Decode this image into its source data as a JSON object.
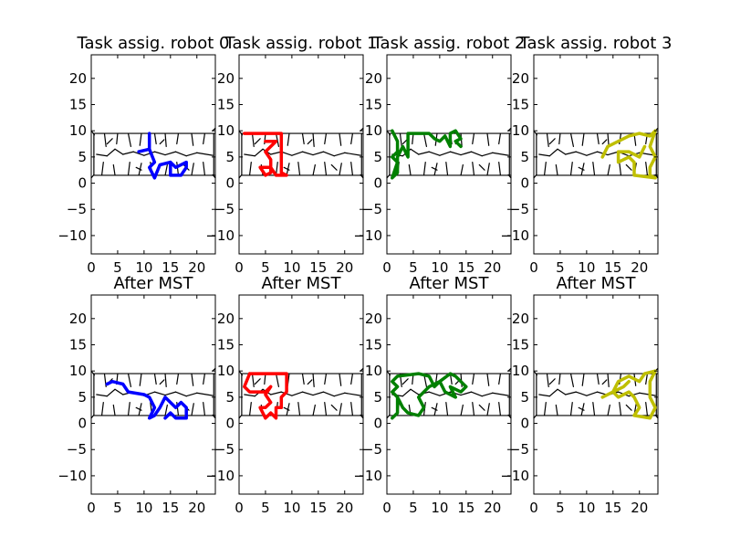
{
  "chart_data": [
    {
      "type": "line",
      "title": "Task assig. robot 0",
      "color": "#0000ff",
      "xlim": [
        0,
        23.5
      ],
      "ylim": [
        -13.5,
        24.5
      ],
      "xticks": [
        "0",
        "5",
        "10",
        "15",
        "20"
      ],
      "yticks": [
        "−10",
        "−5",
        "0",
        "5",
        "10",
        "15",
        "20"
      ],
      "series": [
        {
          "values": [
            [
              9,
              6
            ],
            [
              11,
              6.5
            ],
            [
              11,
              9.5
            ],
            [
              11,
              6.5
            ],
            [
              12,
              4
            ],
            [
              11,
              3
            ],
            [
              12,
              1
            ],
            [
              13,
              3.5
            ],
            [
              15,
              4
            ],
            [
              15,
              1.5
            ],
            [
              17,
              1.5
            ],
            [
              18,
              3
            ],
            [
              18,
              4
            ],
            [
              16,
              3
            ],
            [
              15,
              4
            ]
          ]
        }
      ]
    },
    {
      "type": "line",
      "title": "Task assig. robot 1",
      "color": "#ff0000",
      "xlim": [
        0,
        23.5
      ],
      "ylim": [
        -13.5,
        24.5
      ],
      "xticks": [
        "0",
        "5",
        "10",
        "15",
        "20"
      ],
      "yticks": [
        "−10",
        "−5",
        "0",
        "5",
        "10",
        "15",
        "20"
      ],
      "series": [
        {
          "values": [
            [
              1,
              9.5
            ],
            [
              8,
              9.5
            ],
            [
              8,
              2
            ],
            [
              9,
              1.5
            ],
            [
              7,
              1.5
            ],
            [
              6,
              3
            ],
            [
              4,
              3
            ],
            [
              5,
              1.5
            ],
            [
              6,
              2
            ],
            [
              6,
              4.5
            ],
            [
              5,
              6
            ],
            [
              6,
              7
            ],
            [
              7,
              8
            ],
            [
              5,
              8
            ]
          ]
        }
      ]
    },
    {
      "type": "line",
      "title": "Task assig. robot 2",
      "color": "#008000",
      "xlim": [
        0,
        23.5
      ],
      "ylim": [
        -13.5,
        24.5
      ],
      "xticks": [
        "0",
        "5",
        "10",
        "15",
        "20"
      ],
      "yticks": [
        "−10",
        "−5",
        "0",
        "5",
        "10",
        "15",
        "20"
      ],
      "series": [
        {
          "values": [
            [
              1,
              10
            ],
            [
              2,
              8
            ],
            [
              2,
              6
            ],
            [
              1,
              5
            ],
            [
              2,
              4
            ],
            [
              1,
              1
            ],
            [
              2,
              2
            ],
            [
              2,
              5
            ],
            [
              3,
              7
            ],
            [
              4,
              5
            ],
            [
              4,
              9.5
            ],
            [
              8,
              9.5
            ],
            [
              9,
              8.5
            ],
            [
              10,
              8
            ],
            [
              11,
              9
            ],
            [
              12,
              7
            ],
            [
              12,
              9.5
            ],
            [
              13,
              10
            ],
            [
              14,
              8.5
            ],
            [
              13,
              8
            ],
            [
              14,
              7
            ]
          ]
        }
      ]
    },
    {
      "type": "line",
      "title": "Task assig. robot 3",
      "color": "#bfbf00",
      "xlim": [
        0,
        23.5
      ],
      "ylim": [
        -13.5,
        24.5
      ],
      "xticks": [
        "0",
        "5",
        "10",
        "15",
        "20"
      ],
      "yticks": [
        "−10",
        "−5",
        "0",
        "5",
        "10",
        "15",
        "20"
      ],
      "series": [
        {
          "values": [
            [
              13,
              5
            ],
            [
              14,
              7
            ],
            [
              16,
              8
            ],
            [
              18,
              9
            ],
            [
              20,
              9.5
            ],
            [
              22,
              9
            ],
            [
              23,
              10
            ],
            [
              22,
              7
            ],
            [
              23,
              5
            ],
            [
              22,
              3
            ],
            [
              22,
              1.5
            ],
            [
              23,
              1
            ],
            [
              19,
              1.5
            ],
            [
              19,
              4
            ],
            [
              18,
              5
            ],
            [
              16,
              4
            ],
            [
              16,
              6
            ],
            [
              18,
              6
            ],
            [
              20,
              5
            ],
            [
              21,
              7
            ]
          ]
        }
      ]
    },
    {
      "type": "line",
      "title": "After MST",
      "color": "#0000ff",
      "xlim": [
        0,
        23.5
      ],
      "ylim": [
        -13.5,
        24.5
      ],
      "xticks": [
        "0",
        "5",
        "10",
        "15",
        "20"
      ],
      "yticks": [
        "−10",
        "−5",
        "0",
        "5",
        "10",
        "15",
        "20"
      ],
      "series": [
        {
          "values": [
            [
              3,
              7.5
            ],
            [
              4,
              8
            ],
            [
              6,
              7.5
            ],
            [
              7,
              6
            ],
            [
              10,
              5.5
            ],
            [
              11,
              5
            ],
            [
              12,
              3
            ],
            [
              11,
              1
            ],
            [
              12,
              1.5
            ],
            [
              13,
              3
            ],
            [
              14,
              5
            ],
            [
              15,
              4
            ],
            [
              16,
              3
            ],
            [
              17,
              4
            ],
            [
              18,
              3
            ],
            [
              18,
              1
            ],
            [
              16,
              1
            ],
            [
              15,
              2
            ],
            [
              14,
              1
            ]
          ]
        }
      ]
    },
    {
      "type": "line",
      "title": "After MST",
      "color": "#ff0000",
      "xlim": [
        0,
        23.5
      ],
      "ylim": [
        -13.5,
        24.5
      ],
      "xticks": [
        "0",
        "5",
        "10",
        "15",
        "20"
      ],
      "yticks": [
        "−10",
        "−5",
        "0",
        "5",
        "10",
        "15",
        "20"
      ],
      "series": [
        {
          "values": [
            [
              2,
              9.5
            ],
            [
              1,
              7
            ],
            [
              2,
              6
            ],
            [
              5,
              6
            ],
            [
              6,
              7
            ],
            [
              5,
              5.5
            ],
            [
              6,
              4
            ],
            [
              5,
              3
            ],
            [
              4,
              3
            ],
            [
              5,
              1
            ],
            [
              6,
              2
            ],
            [
              7,
              1
            ],
            [
              7,
              3
            ],
            [
              8,
              3
            ],
            [
              8,
              5
            ],
            [
              9,
              6
            ],
            [
              9,
              9.5
            ],
            [
              8,
              9.5
            ],
            [
              5,
              9.5
            ],
            [
              2,
              9.5
            ]
          ]
        }
      ]
    },
    {
      "type": "line",
      "title": "After MST",
      "color": "#008000",
      "xlim": [
        0,
        23.5
      ],
      "ylim": [
        -13.5,
        24.5
      ],
      "xticks": [
        "0",
        "5",
        "10",
        "15",
        "20"
      ],
      "yticks": [
        "−10",
        "−5",
        "0",
        "5",
        "10",
        "15",
        "20"
      ],
      "series": [
        {
          "values": [
            [
              1,
              1
            ],
            [
              2,
              2
            ],
            [
              2,
              5
            ],
            [
              1,
              6
            ],
            [
              2,
              7
            ],
            [
              1,
              8
            ],
            [
              2,
              9
            ],
            [
              6,
              9.5
            ],
            [
              8,
              9
            ],
            [
              9,
              7
            ],
            [
              10,
              8
            ],
            [
              12,
              9.5
            ],
            [
              13,
              9
            ],
            [
              14,
              8
            ],
            [
              15,
              7
            ],
            [
              14,
              6
            ],
            [
              12,
              7
            ],
            [
              13,
              5
            ],
            [
              11,
              6
            ],
            [
              10,
              8
            ],
            [
              8,
              7
            ],
            [
              6,
              5
            ],
            [
              7,
              3
            ],
            [
              6,
              1.5
            ],
            [
              4,
              2
            ],
            [
              3,
              3
            ],
            [
              2,
              5
            ]
          ]
        }
      ]
    },
    {
      "type": "line",
      "title": "After MST",
      "color": "#bfbf00",
      "xlim": [
        0,
        23.5
      ],
      "ylim": [
        -13.5,
        24.5
      ],
      "xticks": [
        "0",
        "5",
        "10",
        "15",
        "20"
      ],
      "yticks": [
        "−10",
        "−5",
        "0",
        "5",
        "10",
        "15",
        "20"
      ],
      "series": [
        {
          "values": [
            [
              13,
              5
            ],
            [
              15,
              6
            ],
            [
              16,
              8
            ],
            [
              18,
              9
            ],
            [
              20,
              8
            ],
            [
              21,
              9.5
            ],
            [
              23,
              10
            ],
            [
              22,
              8
            ],
            [
              22,
              5
            ],
            [
              23,
              3
            ],
            [
              22,
              1
            ],
            [
              19,
              1.5
            ],
            [
              20,
              3
            ],
            [
              19,
              5
            ],
            [
              18,
              6
            ],
            [
              16,
              5
            ],
            [
              15,
              6
            ],
            [
              17,
              7
            ],
            [
              18,
              8
            ]
          ]
        }
      ]
    }
  ]
}
